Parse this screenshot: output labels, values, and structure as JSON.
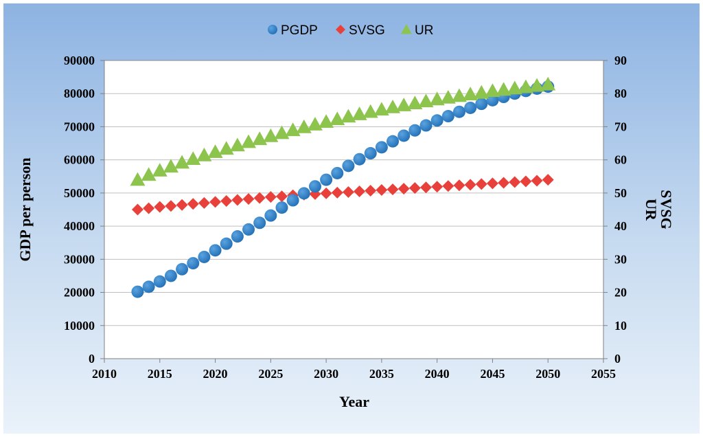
{
  "chart_data": {
    "type": "scatter",
    "title": "",
    "xlabel": "Year",
    "ylabel_left": "GDP per person",
    "ylabel_right": [
      "SVSG",
      "UR"
    ],
    "x": [
      2013,
      2014,
      2015,
      2016,
      2017,
      2018,
      2019,
      2020,
      2021,
      2022,
      2023,
      2024,
      2025,
      2026,
      2027,
      2028,
      2029,
      2030,
      2031,
      2032,
      2033,
      2034,
      2035,
      2036,
      2037,
      2038,
      2039,
      2040,
      2041,
      2042,
      2043,
      2044,
      2045,
      2046,
      2047,
      2048,
      2049,
      2050
    ],
    "xlim": [
      2010,
      2055
    ],
    "xticks": [
      2010,
      2015,
      2020,
      2025,
      2030,
      2035,
      2040,
      2045,
      2050,
      2055
    ],
    "ylim_left": [
      0,
      90000
    ],
    "yticks_left": [
      0,
      10000,
      20000,
      30000,
      40000,
      50000,
      60000,
      70000,
      80000,
      90000
    ],
    "ylim_right": [
      0,
      90
    ],
    "yticks_right": [
      0,
      10,
      20,
      30,
      40,
      50,
      60,
      70,
      80,
      90
    ],
    "legend_position": "top-center",
    "series": [
      {
        "name": "PGDP",
        "axis": "left",
        "marker": "circle",
        "color": "#2E7DC4",
        "values": [
          20200,
          21700,
          23300,
          25000,
          27000,
          28800,
          30700,
          32700,
          34700,
          36900,
          39000,
          41000,
          43200,
          45600,
          47800,
          49900,
          52000,
          54000,
          56000,
          58200,
          60200,
          62000,
          63800,
          65600,
          67300,
          68900,
          70400,
          71900,
          73200,
          74500,
          75700,
          76900,
          78000,
          79000,
          80000,
          80800,
          81500,
          82100
        ]
      },
      {
        "name": "SVSG",
        "axis": "right",
        "marker": "diamond",
        "color": "#E8403A",
        "values": [
          45.0,
          45.4,
          45.8,
          46.1,
          46.4,
          46.7,
          47.0,
          47.3,
          47.6,
          47.9,
          48.2,
          48.5,
          48.8,
          49.0,
          49.3,
          49.5,
          49.7,
          49.9,
          50.1,
          50.3,
          50.5,
          50.7,
          50.9,
          51.1,
          51.3,
          51.5,
          51.7,
          51.9,
          52.1,
          52.3,
          52.5,
          52.7,
          52.9,
          53.1,
          53.3,
          53.5,
          53.7,
          54.0
        ]
      },
      {
        "name": "UR",
        "axis": "right",
        "marker": "triangle",
        "color": "#8DC44E",
        "values": [
          54.0,
          55.5,
          56.8,
          58.0,
          59.2,
          60.3,
          61.4,
          62.4,
          63.4,
          64.4,
          65.4,
          66.3,
          67.2,
          68.1,
          69.0,
          69.9,
          70.7,
          71.5,
          72.3,
          73.1,
          73.8,
          74.5,
          75.2,
          75.9,
          76.5,
          77.1,
          77.7,
          78.3,
          78.8,
          79.3,
          79.8,
          80.3,
          80.8,
          81.2,
          81.6,
          82.0,
          82.4,
          82.8
        ]
      }
    ]
  }
}
